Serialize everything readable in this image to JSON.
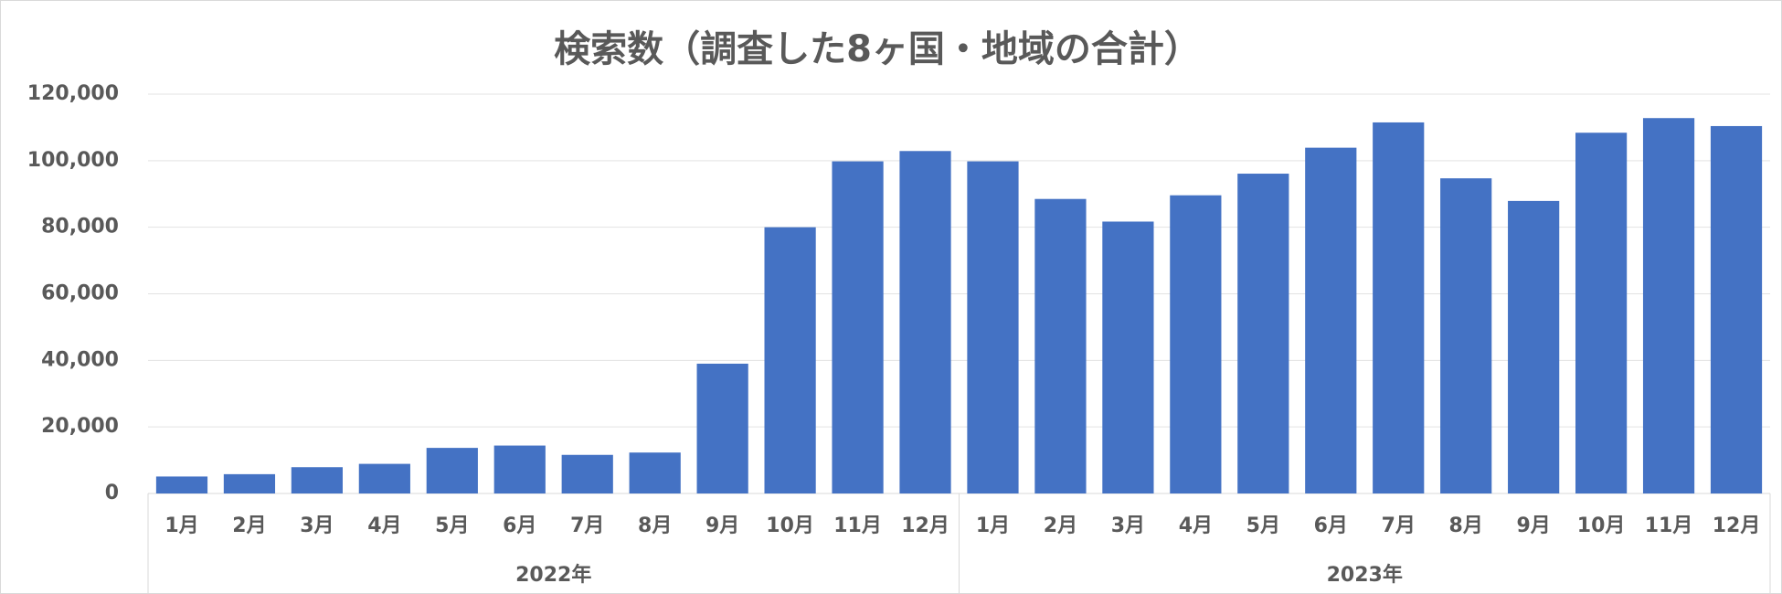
{
  "chart_data": {
    "type": "bar",
    "title": "検索数（調査した8ヶ国・地域の合計）",
    "color": "#4472c4",
    "groups": [
      {
        "label": "2022年",
        "categories": [
          "1月",
          "2月",
          "3月",
          "4月",
          "5月",
          "6月",
          "7月",
          "8月",
          "9月",
          "10月",
          "11月",
          "12月"
        ],
        "values": [
          5100,
          5800,
          7900,
          8900,
          13700,
          14400,
          11600,
          12300,
          39000,
          80000,
          99800,
          102900
        ]
      },
      {
        "label": "2023年",
        "categories": [
          "1月",
          "2月",
          "3月",
          "4月",
          "5月",
          "6月",
          "7月",
          "8月",
          "9月",
          "10月",
          "11月",
          "12月"
        ],
        "values": [
          99800,
          88500,
          81700,
          89600,
          96100,
          103900,
          111500,
          94700,
          87900,
          108400,
          112800,
          110400
        ]
      }
    ],
    "ylim": [
      0,
      120000
    ],
    "yticks": [
      0,
      {
        "value": 20000,
        "label": "20,000"
      },
      {
        "value": 40000,
        "label": "40,000"
      },
      {
        "value": 60000,
        "label": "60,000"
      },
      {
        "value": 80000,
        "label": "80,000"
      },
      {
        "value": 100000,
        "label": "100,000"
      },
      {
        "value": 120000,
        "label": "120,000"
      }
    ],
    "grid": true
  }
}
